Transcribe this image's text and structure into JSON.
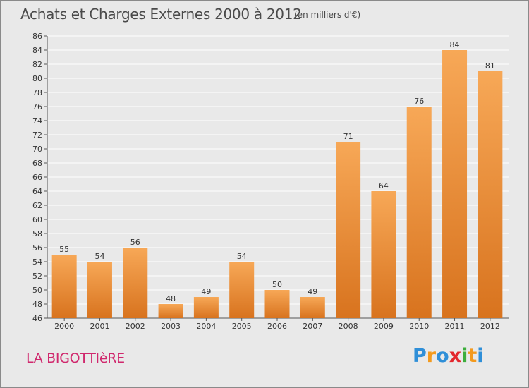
{
  "title": "Achats et Charges Externes 2000 à 2012",
  "subtitle": "(en milliers d'€)",
  "place_name": "LA BIGOTTIèRE",
  "logo": {
    "letters": [
      "P",
      "r",
      "o",
      "x",
      "i",
      "t",
      "i"
    ],
    "colors": [
      "#2f8fd8",
      "#f39a1e",
      "#2f8fd8",
      "#e3272d",
      "#3cae3c",
      "#f39a1e",
      "#2f8fd8"
    ]
  },
  "colors": {
    "bar_light": "#f7a857",
    "bar_dark": "#d8731e",
    "grid": "#ffffff",
    "plot_bg": "#e9e9e9",
    "title": "#4a4a4a",
    "place": "#d0286d"
  },
  "chart_data": {
    "type": "bar",
    "title": "Achats et Charges Externes 2000 à 2012",
    "subtitle": "(en milliers d'€)",
    "categories": [
      "2000",
      "2001",
      "2002",
      "2003",
      "2004",
      "2005",
      "2006",
      "2007",
      "2008",
      "2009",
      "2010",
      "2011",
      "2012"
    ],
    "values": [
      55,
      54,
      56,
      48,
      49,
      54,
      50,
      49,
      71,
      64,
      76,
      84,
      81
    ],
    "data_labels": [
      "55",
      "54",
      "56",
      "48",
      "49",
      "54",
      "50",
      "49",
      "71",
      "64",
      "76",
      "84",
      "81"
    ],
    "ylim": [
      46,
      86
    ],
    "yticks": [
      46,
      48,
      50,
      52,
      54,
      56,
      58,
      60,
      62,
      64,
      66,
      68,
      70,
      72,
      74,
      76,
      78,
      80,
      82,
      84,
      86
    ],
    "grid": true,
    "xlabel": "",
    "ylabel": ""
  }
}
